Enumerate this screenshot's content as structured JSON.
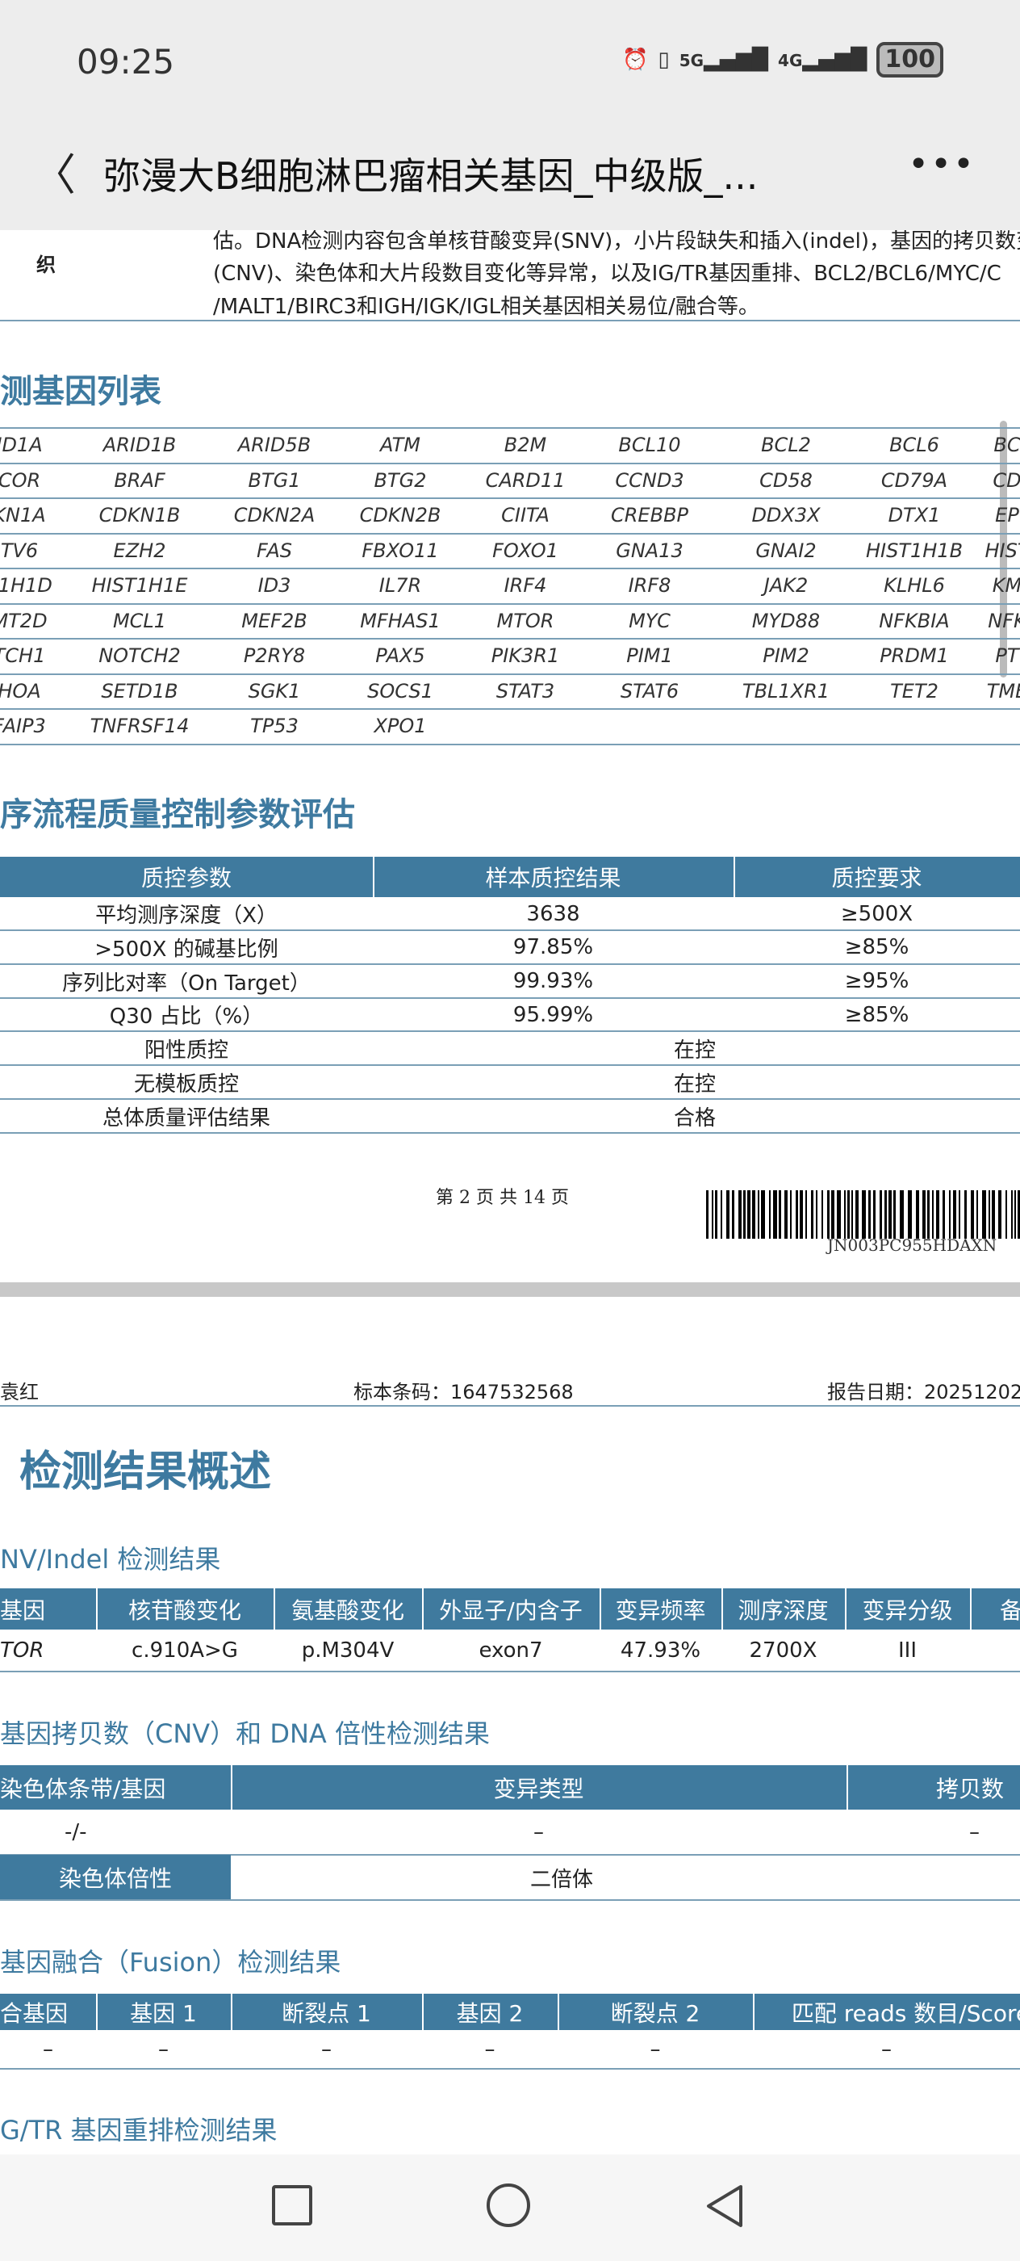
{
  "status_bar": {
    "time": "09:25",
    "icons": [
      "alarm-icon",
      "vibrate-icon",
      "5g-signal-icon",
      "4g-signal-icon"
    ],
    "network1": "5G",
    "network2": "4G",
    "battery": "100"
  },
  "app_bar": {
    "title": "弥漫大B细胞淋巴瘤相关基因_中级版_...",
    "back_icon": "chevron-left-icon",
    "more_icon": "more-icon"
  },
  "intro": {
    "label": "织",
    "lines": [
      "估。DNA检测内容包含单核苷酸变异(SNV)，小片段缺失和插入(indel)，基因的拷贝数变",
      "(CNV)、染色体和大片段数目变化等异常，以及IG/TR基因重排、BCL2/BCL6/MYC/C",
      "/MALT1/BIRC3和IGH/IGK/IGL相关基因相关易位/融合等。"
    ]
  },
  "gene_list": {
    "title": "测基因列表",
    "rows": [
      [
        "ID1A",
        "ARID1B",
        "ARID5B",
        "ATM",
        "B2M",
        "BCL10",
        "BCL2",
        "BCL6",
        "BC"
      ],
      [
        "COR",
        "BRAF",
        "BTG1",
        "BTG2",
        "CARD11",
        "CCND3",
        "CD58",
        "CD79A",
        "CD"
      ],
      [
        "KN1A",
        "CDKN1B",
        "CDKN2A",
        "CDKN2B",
        "CIITA",
        "CREBBP",
        "DDX3X",
        "DTX1",
        "EP"
      ],
      [
        "TV6",
        "EZH2",
        "FAS",
        "FBXO11",
        "FOXO1",
        "GNA13",
        "GNAI2",
        "HIST1H1B",
        "HIST"
      ],
      [
        "T1H1D",
        "HIST1H1E",
        "ID3",
        "IL7R",
        "IRF4",
        "IRF8",
        "JAK2",
        "KLHL6",
        "KM"
      ],
      [
        "MT2D",
        "MCL1",
        "MEF2B",
        "MFHAS1",
        "MTOR",
        "MYC",
        "MYD88",
        "NFKBIA",
        "NFK"
      ],
      [
        "TCH1",
        "NOTCH2",
        "P2RY8",
        "PAX5",
        "PIK3R1",
        "PIM1",
        "PIM2",
        "PRDM1",
        "PT"
      ],
      [
        "HOA",
        "SETD1B",
        "SGK1",
        "SOCS1",
        "STAT3",
        "STAT6",
        "TBL1XR1",
        "TET2",
        "TME"
      ],
      [
        "FAIP3",
        "TNFRSF14",
        "TP53",
        "XPO1"
      ]
    ]
  },
  "qc": {
    "title": "序流程质量控制参数评估",
    "headers": [
      "质控参数",
      "样本质控结果",
      "质控要求"
    ],
    "rows": [
      [
        "平均测序深度（X）",
        "3638",
        "≥500X"
      ],
      [
        ">500X 的碱基比例",
        "97.85%",
        "≥85%"
      ],
      [
        "序列比对率（On Target）",
        "99.93%",
        "≥95%"
      ],
      [
        "Q30 占比（%）",
        "95.99%",
        "≥85%"
      ]
    ],
    "merged_rows": [
      [
        "阳性质控",
        "在控"
      ],
      [
        "无模板质控",
        "在控"
      ],
      [
        "总体质量评估结果",
        "合格"
      ]
    ]
  },
  "page_footer": {
    "page_text": "第 2 页 共 14 页",
    "barcode_text": "JN003PC955HDAXN"
  },
  "page2_header": {
    "name": "袁红",
    "sample_code": "标本条码：1647532568",
    "report_date": "报告日期：20251202"
  },
  "summary": {
    "title": "检测结果概述",
    "snv": {
      "title": "NV/Indel 检测结果",
      "headers": [
        "基因",
        "核苷酸变化",
        "氨基酸变化",
        "外显子/内含子",
        "变异频率",
        "测序深度",
        "变异分级",
        "备"
      ],
      "row": [
        "TOR",
        "c.910A>G",
        "p.M304V",
        "exon7",
        "47.93%",
        "2700X",
        "III",
        ""
      ]
    },
    "cnv": {
      "title": "基因拷贝数（CNV）和 DNA 倍性检测结果",
      "headers": [
        "染色体条带/基因",
        "变异类型",
        "拷贝数"
      ],
      "row": [
        "-/-",
        "–",
        "–"
      ],
      "ploidy_label": "染色体倍性",
      "ploidy_value": "二倍体"
    },
    "fusion": {
      "title": "基因融合（Fusion）检测结果",
      "headers": [
        "合基因",
        "基因 1",
        "断裂点 1",
        "基因 2",
        "断裂点 2",
        "匹配 reads 数目/Score"
      ],
      "row": [
        "–",
        "–",
        "–",
        "–",
        "–",
        "–"
      ]
    },
    "igtr": {
      "title": "G/TR 基因重排检测结果"
    }
  },
  "nav_bar": {
    "icons": [
      "recent-apps-icon",
      "home-icon",
      "back-icon"
    ]
  },
  "colors": {
    "table_header": "#3f7a9e",
    "heading": "#3e7aa0",
    "bar_bg": "#ededed"
  }
}
